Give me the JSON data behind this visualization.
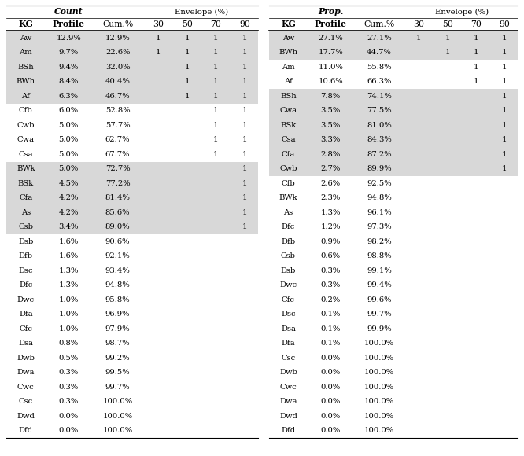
{
  "left_table": {
    "title_label": "Count",
    "rows": [
      [
        "Aw",
        "12.9%",
        "12.9%",
        "1",
        "1",
        "1",
        "1"
      ],
      [
        "Am",
        "9.7%",
        "22.6%",
        "1",
        "1",
        "1",
        "1"
      ],
      [
        "BSh",
        "9.4%",
        "32.0%",
        "",
        "1",
        "1",
        "1"
      ],
      [
        "BWh",
        "8.4%",
        "40.4%",
        "",
        "1",
        "1",
        "1"
      ],
      [
        "Af",
        "6.3%",
        "46.7%",
        "",
        "1",
        "1",
        "1"
      ],
      [
        "Cfb",
        "6.0%",
        "52.8%",
        "",
        "",
        "1",
        "1"
      ],
      [
        "Cwb",
        "5.0%",
        "57.7%",
        "",
        "",
        "1",
        "1"
      ],
      [
        "Cwa",
        "5.0%",
        "62.7%",
        "",
        "",
        "1",
        "1"
      ],
      [
        "Csa",
        "5.0%",
        "67.7%",
        "",
        "",
        "1",
        "1"
      ],
      [
        "BWk",
        "5.0%",
        "72.7%",
        "",
        "",
        "",
        "1"
      ],
      [
        "BSk",
        "4.5%",
        "77.2%",
        "",
        "",
        "",
        "1"
      ],
      [
        "Cfa",
        "4.2%",
        "81.4%",
        "",
        "",
        "",
        "1"
      ],
      [
        "As",
        "4.2%",
        "85.6%",
        "",
        "",
        "",
        "1"
      ],
      [
        "Csb",
        "3.4%",
        "89.0%",
        "",
        "",
        "",
        "1"
      ],
      [
        "Dsb",
        "1.6%",
        "90.6%",
        "",
        "",
        "",
        ""
      ],
      [
        "Dfb",
        "1.6%",
        "92.1%",
        "",
        "",
        "",
        ""
      ],
      [
        "Dsc",
        "1.3%",
        "93.4%",
        "",
        "",
        "",
        ""
      ],
      [
        "Dfc",
        "1.3%",
        "94.8%",
        "",
        "",
        "",
        ""
      ],
      [
        "Dwc",
        "1.0%",
        "95.8%",
        "",
        "",
        "",
        ""
      ],
      [
        "Dfa",
        "1.0%",
        "96.9%",
        "",
        "",
        "",
        ""
      ],
      [
        "Cfc",
        "1.0%",
        "97.9%",
        "",
        "",
        "",
        ""
      ],
      [
        "Dsa",
        "0.8%",
        "98.7%",
        "",
        "",
        "",
        ""
      ],
      [
        "Dwb",
        "0.5%",
        "99.2%",
        "",
        "",
        "",
        ""
      ],
      [
        "Dwa",
        "0.3%",
        "99.5%",
        "",
        "",
        "",
        ""
      ],
      [
        "Cwc",
        "0.3%",
        "99.7%",
        "",
        "",
        "",
        ""
      ],
      [
        "Csc",
        "0.3%",
        "100.0%",
        "",
        "",
        "",
        ""
      ],
      [
        "Dwd",
        "0.0%",
        "100.0%",
        "",
        "",
        "",
        ""
      ],
      [
        "Dfd",
        "0.0%",
        "100.0%",
        "",
        "",
        "",
        ""
      ]
    ],
    "shaded_rows": [
      0,
      1,
      2,
      3,
      4,
      9,
      10,
      11,
      12,
      13
    ]
  },
  "right_table": {
    "title_label": "Prop.",
    "rows": [
      [
        "Aw",
        "27.1%",
        "27.1%",
        "1",
        "1",
        "1",
        "1"
      ],
      [
        "BWh",
        "17.7%",
        "44.7%",
        "",
        "1",
        "1",
        "1"
      ],
      [
        "Am",
        "11.0%",
        "55.8%",
        "",
        "",
        "1",
        "1"
      ],
      [
        "Af",
        "10.6%",
        "66.3%",
        "",
        "",
        "1",
        "1"
      ],
      [
        "BSh",
        "7.8%",
        "74.1%",
        "",
        "",
        "",
        "1"
      ],
      [
        "Cwa",
        "3.5%",
        "77.5%",
        "",
        "",
        "",
        "1"
      ],
      [
        "BSk",
        "3.5%",
        "81.0%",
        "",
        "",
        "",
        "1"
      ],
      [
        "Csa",
        "3.3%",
        "84.3%",
        "",
        "",
        "",
        "1"
      ],
      [
        "Cfa",
        "2.8%",
        "87.2%",
        "",
        "",
        "",
        "1"
      ],
      [
        "Cwb",
        "2.7%",
        "89.9%",
        "",
        "",
        "",
        "1"
      ],
      [
        "Cfb",
        "2.6%",
        "92.5%",
        "",
        "",
        "",
        ""
      ],
      [
        "BWk",
        "2.3%",
        "94.8%",
        "",
        "",
        "",
        ""
      ],
      [
        "As",
        "1.3%",
        "96.1%",
        "",
        "",
        "",
        ""
      ],
      [
        "Dfc",
        "1.2%",
        "97.3%",
        "",
        "",
        "",
        ""
      ],
      [
        "Dfb",
        "0.9%",
        "98.2%",
        "",
        "",
        "",
        ""
      ],
      [
        "Csb",
        "0.6%",
        "98.8%",
        "",
        "",
        "",
        ""
      ],
      [
        "Dsb",
        "0.3%",
        "99.1%",
        "",
        "",
        "",
        ""
      ],
      [
        "Dwc",
        "0.3%",
        "99.4%",
        "",
        "",
        "",
        ""
      ],
      [
        "Cfc",
        "0.2%",
        "99.6%",
        "",
        "",
        "",
        ""
      ],
      [
        "Dsc",
        "0.1%",
        "99.7%",
        "",
        "",
        "",
        ""
      ],
      [
        "Dsa",
        "0.1%",
        "99.9%",
        "",
        "",
        "",
        ""
      ],
      [
        "Dfa",
        "0.1%",
        "100.0%",
        "",
        "",
        "",
        ""
      ],
      [
        "Csc",
        "0.0%",
        "100.0%",
        "",
        "",
        "",
        ""
      ],
      [
        "Dwb",
        "0.0%",
        "100.0%",
        "",
        "",
        "",
        ""
      ],
      [
        "Cwc",
        "0.0%",
        "100.0%",
        "",
        "",
        "",
        ""
      ],
      [
        "Dwa",
        "0.0%",
        "100.0%",
        "",
        "",
        "",
        ""
      ],
      [
        "Dwd",
        "0.0%",
        "100.0%",
        "",
        "",
        "",
        ""
      ],
      [
        "Dfd",
        "0.0%",
        "100.0%",
        "",
        "",
        "",
        ""
      ]
    ],
    "shaded_rows": [
      0,
      1,
      4,
      5,
      6,
      7,
      8,
      9
    ]
  },
  "col_headers": [
    "KG",
    "Profile",
    "Cum.%",
    "30",
    "50",
    "70",
    "90"
  ],
  "envelope_label": "Envelope (%)",
  "shade_color": "#d8d8d8",
  "bg_color": "#ffffff",
  "font_size": 7.2,
  "header_font_size": 7.8
}
